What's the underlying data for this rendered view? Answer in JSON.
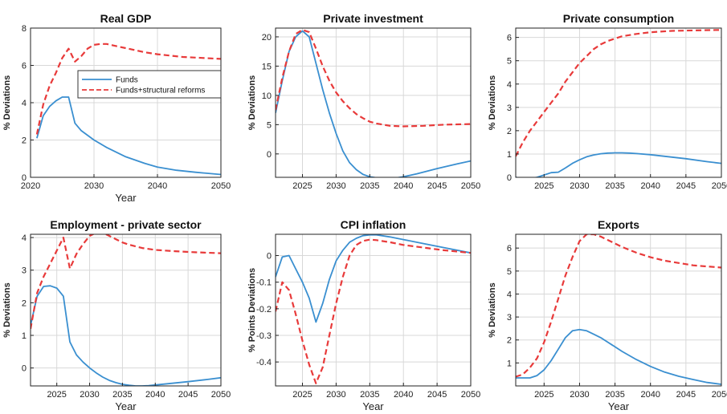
{
  "colors": {
    "funds": "#3a8fd0",
    "reforms": "#e83a3a",
    "grid": "#d8d8d8",
    "axis": "#222222"
  },
  "chart_data": [
    {
      "type": "line",
      "title": "Real GDP",
      "xlabel": "Year",
      "ylabel": "% Deviations",
      "xlim": [
        2020,
        2050
      ],
      "ylim": [
        0,
        8
      ],
      "xticks": [
        2020,
        2030,
        2040,
        2050
      ],
      "yticks": [
        0,
        2,
        4,
        6,
        8
      ],
      "grid": true,
      "legend": {
        "placement": "center-right",
        "entries": [
          "Funds",
          "Funds+structural reforms"
        ]
      },
      "series": [
        {
          "name": "Funds",
          "style": "solid",
          "x": [
            2021,
            2022,
            2023,
            2024,
            2025,
            2026,
            2027,
            2028,
            2030,
            2032,
            2035,
            2038,
            2040,
            2043,
            2046,
            2050
          ],
          "y": [
            2.1,
            3.3,
            3.8,
            4.1,
            4.3,
            4.3,
            2.9,
            2.5,
            2.0,
            1.6,
            1.1,
            0.75,
            0.55,
            0.38,
            0.27,
            0.15
          ]
        },
        {
          "name": "Funds+structural reforms",
          "style": "dashed",
          "x": [
            2021,
            2022,
            2023,
            2024,
            2025,
            2026,
            2027,
            2028,
            2029,
            2030,
            2031,
            2032,
            2034,
            2036,
            2038,
            2040,
            2044,
            2047,
            2050
          ],
          "y": [
            2.3,
            3.9,
            4.9,
            5.6,
            6.4,
            6.9,
            6.2,
            6.5,
            6.9,
            7.1,
            7.15,
            7.15,
            7.0,
            6.85,
            6.7,
            6.6,
            6.45,
            6.4,
            6.35
          ]
        }
      ]
    },
    {
      "type": "line",
      "title": "Private investment",
      "xlabel": "",
      "ylabel": "% Deviations",
      "xlim": [
        2021,
        2050
      ],
      "ylim": [
        -4,
        21.5
      ],
      "xticks": [
        2025,
        2030,
        2035,
        2040,
        2045,
        2050
      ],
      "yticks": [
        0,
        5,
        10,
        15,
        20
      ],
      "grid": true,
      "series": [
        {
          "name": "Funds",
          "style": "solid",
          "x": [
            2021,
            2022,
            2023,
            2024,
            2025,
            2026,
            2027,
            2028,
            2029,
            2030,
            2031,
            2032,
            2033,
            2034,
            2035,
            2036,
            2037,
            2038,
            2039,
            2040,
            2042,
            2045,
            2048,
            2050
          ],
          "y": [
            7,
            12.5,
            17.5,
            20,
            21,
            20,
            15.5,
            11,
            7,
            3.5,
            0.5,
            -1.5,
            -2.7,
            -3.5,
            -3.9,
            -4.1,
            -4.2,
            -4.2,
            -4.1,
            -3.9,
            -3.4,
            -2.5,
            -1.7,
            -1.2
          ]
        },
        {
          "name": "Funds+structural reforms",
          "style": "dashed",
          "x": [
            2021,
            2022,
            2023,
            2024,
            2025,
            2026,
            2027,
            2028,
            2029,
            2030,
            2031,
            2032,
            2033,
            2034,
            2035,
            2036,
            2038,
            2040,
            2043,
            2046,
            2050
          ],
          "y": [
            7.5,
            13,
            17.5,
            20.5,
            21.2,
            20.8,
            18,
            15,
            12.5,
            10.5,
            9,
            7.8,
            6.8,
            6.1,
            5.5,
            5.2,
            4.8,
            4.7,
            4.8,
            5.0,
            5.1
          ]
        }
      ]
    },
    {
      "type": "line",
      "title": "Private consumption",
      "xlabel": "",
      "ylabel": "% Deviations",
      "xlim": [
        2021,
        2050
      ],
      "ylim": [
        0,
        6.4
      ],
      "xticks": [
        2025,
        2030,
        2035,
        2040,
        2045,
        2050
      ],
      "yticks": [
        0,
        1,
        2,
        3,
        4,
        5,
        6
      ],
      "grid": true,
      "series": [
        {
          "name": "Funds",
          "style": "solid",
          "x": [
            2021,
            2022,
            2023,
            2024,
            2025,
            2026,
            2027,
            2028,
            2029,
            2030,
            2031,
            2032,
            2033,
            2034,
            2035,
            2036,
            2037,
            2038,
            2040,
            2042,
            2045,
            2048,
            2050
          ],
          "y": [
            0,
            -0.05,
            -0.05,
            0,
            0.1,
            0.2,
            0.22,
            0.4,
            0.6,
            0.75,
            0.88,
            0.96,
            1.01,
            1.04,
            1.05,
            1.05,
            1.04,
            1.02,
            0.97,
            0.9,
            0.8,
            0.67,
            0.6
          ]
        },
        {
          "name": "Funds+structural reforms",
          "style": "dashed",
          "x": [
            2021,
            2022,
            2023,
            2024,
            2025,
            2026,
            2027,
            2028,
            2029,
            2030,
            2031,
            2032,
            2033,
            2034,
            2035,
            2036,
            2038,
            2040,
            2043,
            2046,
            2050
          ],
          "y": [
            0.9,
            1.5,
            2.0,
            2.4,
            2.8,
            3.2,
            3.6,
            4.1,
            4.5,
            4.9,
            5.2,
            5.5,
            5.7,
            5.85,
            5.95,
            6.05,
            6.15,
            6.22,
            6.28,
            6.3,
            6.32
          ]
        }
      ]
    },
    {
      "type": "line",
      "title": "Employment - private sector",
      "xlabel": "Year",
      "ylabel": "% Deviations",
      "xlim": [
        2021,
        2050
      ],
      "ylim": [
        -0.55,
        4.1
      ],
      "xticks": [
        2025,
        2030,
        2035,
        2040,
        2045,
        2050
      ],
      "yticks": [
        0,
        1,
        2,
        3,
        4
      ],
      "grid": true,
      "series": [
        {
          "name": "Funds",
          "style": "solid",
          "x": [
            2021,
            2022,
            2023,
            2024,
            2025,
            2026,
            2027,
            2028,
            2029,
            2030,
            2031,
            2032,
            2033,
            2034,
            2035,
            2036,
            2037,
            2038,
            2039,
            2040,
            2042,
            2045,
            2048,
            2050
          ],
          "y": [
            1.3,
            2.2,
            2.5,
            2.52,
            2.45,
            2.2,
            0.8,
            0.4,
            0.18,
            0.0,
            -0.15,
            -0.28,
            -0.38,
            -0.45,
            -0.5,
            -0.53,
            -0.55,
            -0.55,
            -0.54,
            -0.52,
            -0.48,
            -0.42,
            -0.35,
            -0.3
          ]
        },
        {
          "name": "Funds+structural reforms",
          "style": "dashed",
          "x": [
            2021,
            2022,
            2023,
            2024,
            2025,
            2026,
            2027,
            2028,
            2029,
            2030,
            2031,
            2032,
            2033,
            2034,
            2035,
            2036,
            2038,
            2040,
            2043,
            2046,
            2050
          ],
          "y": [
            1.2,
            2.3,
            2.8,
            3.2,
            3.6,
            4.0,
            3.05,
            3.5,
            3.8,
            4.05,
            4.15,
            4.15,
            4.05,
            3.95,
            3.85,
            3.78,
            3.68,
            3.62,
            3.58,
            3.55,
            3.52
          ]
        }
      ]
    },
    {
      "type": "line",
      "title": "CPI inflation",
      "xlabel": "Year",
      "ylabel": "% Points Deviations",
      "xlim": [
        2021,
        2050
      ],
      "ylim": [
        -0.49,
        0.08
      ],
      "xticks": [
        2025,
        2030,
        2035,
        2040,
        2045,
        2050
      ],
      "yticks": [
        -0.4,
        -0.3,
        -0.2,
        -0.1,
        0
      ],
      "grid": true,
      "series": [
        {
          "name": "Funds",
          "style": "solid",
          "x": [
            2021,
            2022,
            2023,
            2024,
            2025,
            2026,
            2027,
            2028,
            2029,
            2030,
            2031,
            2032,
            2033,
            2034,
            2035,
            2036,
            2038,
            2040,
            2043,
            2046,
            2050
          ],
          "y": [
            -0.08,
            -0.005,
            0.0,
            -0.05,
            -0.1,
            -0.16,
            -0.25,
            -0.18,
            -0.09,
            -0.02,
            0.02,
            0.05,
            0.065,
            0.075,
            0.078,
            0.078,
            0.07,
            0.06,
            0.045,
            0.03,
            0.01
          ]
        },
        {
          "name": "Funds+structural reforms",
          "style": "dashed",
          "x": [
            2021,
            2022,
            2023,
            2024,
            2025,
            2026,
            2027,
            2028,
            2029,
            2030,
            2031,
            2032,
            2033,
            2034,
            2035,
            2036,
            2038,
            2040,
            2043,
            2046,
            2050
          ],
          "y": [
            -0.21,
            -0.1,
            -0.13,
            -0.22,
            -0.32,
            -0.41,
            -0.48,
            -0.42,
            -0.3,
            -0.18,
            -0.08,
            0.0,
            0.04,
            0.055,
            0.06,
            0.058,
            0.05,
            0.04,
            0.03,
            0.02,
            0.01
          ]
        }
      ]
    },
    {
      "type": "line",
      "title": "Exports",
      "xlabel": "Year",
      "ylabel": "% Deviations",
      "xlim": [
        2021,
        2050
      ],
      "ylim": [
        0,
        6.6
      ],
      "xticks": [
        2025,
        2030,
        2035,
        2040,
        2045,
        2050
      ],
      "yticks": [
        1,
        2,
        3,
        4,
        5,
        6
      ],
      "grid": true,
      "series": [
        {
          "name": "Funds",
          "style": "solid",
          "x": [
            2021,
            2022,
            2023,
            2024,
            2025,
            2026,
            2027,
            2028,
            2029,
            2030,
            2031,
            2032,
            2033,
            2034,
            2035,
            2036,
            2038,
            2040,
            2042,
            2044,
            2046,
            2048,
            2050
          ],
          "y": [
            0.35,
            0.35,
            0.35,
            0.45,
            0.7,
            1.1,
            1.6,
            2.1,
            2.4,
            2.45,
            2.4,
            2.25,
            2.1,
            1.9,
            1.7,
            1.5,
            1.15,
            0.85,
            0.6,
            0.42,
            0.28,
            0.15,
            0.07
          ]
        },
        {
          "name": "Funds+structural reforms",
          "style": "dashed",
          "x": [
            2021,
            2022,
            2023,
            2024,
            2025,
            2026,
            2027,
            2028,
            2029,
            2030,
            2031,
            2032,
            2033,
            2034,
            2035,
            2036,
            2038,
            2040,
            2042,
            2044,
            2046,
            2048,
            2050
          ],
          "y": [
            0.4,
            0.5,
            0.8,
            1.2,
            1.9,
            2.8,
            3.8,
            4.8,
            5.6,
            6.3,
            6.6,
            6.6,
            6.5,
            6.35,
            6.2,
            6.05,
            5.8,
            5.6,
            5.45,
            5.35,
            5.25,
            5.2,
            5.15
          ]
        }
      ]
    }
  ]
}
